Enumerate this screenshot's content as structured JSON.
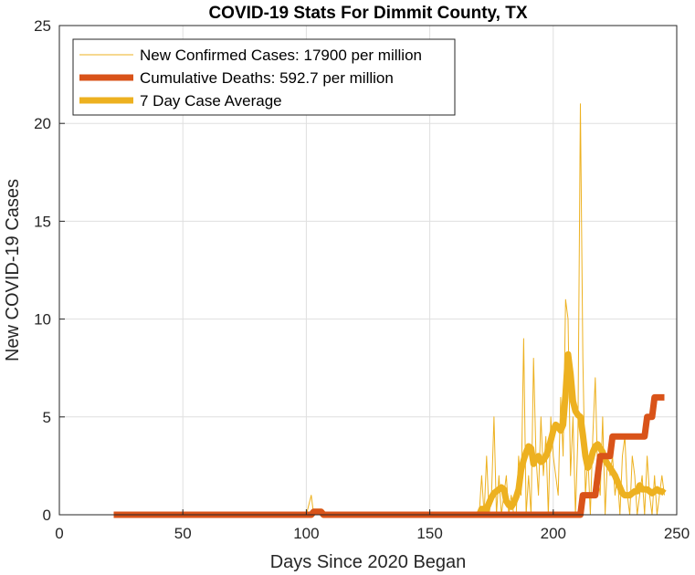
{
  "chart_data": {
    "type": "line",
    "title": "COVID-19 Stats For Dimmit County, TX",
    "xlabel": "Days Since 2020 Began",
    "ylabel": "New COVID-19 Cases",
    "xlim": [
      0,
      250
    ],
    "ylim": [
      0,
      25
    ],
    "xticks": [
      0,
      50,
      100,
      150,
      200,
      250
    ],
    "yticks": [
      0,
      5,
      10,
      15,
      20,
      25
    ],
    "grid": true,
    "legend_position": "top-left",
    "colors": {
      "new_cases": "#EDB120",
      "deaths": "#D95319",
      "average": "#EDB120"
    },
    "series": [
      {
        "name": "New Confirmed Cases: 17900 per million",
        "style": "thin",
        "x": [
          22,
          100,
          102,
          103,
          104,
          105,
          106,
          170,
          171,
          172,
          173,
          174,
          175,
          176,
          177,
          178,
          179,
          180,
          181,
          182,
          183,
          184,
          185,
          186,
          187,
          188,
          189,
          190,
          191,
          192,
          193,
          194,
          195,
          196,
          197,
          198,
          199,
          200,
          201,
          202,
          203,
          204,
          205,
          206,
          207,
          208,
          209,
          210,
          211,
          212,
          213,
          214,
          215,
          216,
          217,
          218,
          219,
          220,
          221,
          222,
          223,
          224,
          225,
          226,
          227,
          228,
          229,
          230,
          231,
          232,
          233,
          234,
          235,
          236,
          237,
          238,
          239,
          240,
          241,
          242,
          243,
          244,
          245
        ],
        "y": [
          0,
          0,
          1,
          0,
          0,
          0,
          0,
          0,
          2,
          0,
          3,
          0,
          1,
          5,
          0,
          2,
          0,
          1,
          2,
          0,
          1,
          0,
          0,
          3,
          1,
          9,
          0,
          2,
          0,
          8,
          3,
          1,
          5,
          2,
          4,
          0,
          5,
          3,
          2,
          1,
          6,
          3,
          11,
          10,
          2,
          5,
          0,
          4,
          21,
          8,
          1,
          3,
          0,
          4,
          7,
          2,
          1,
          5,
          0,
          3,
          2,
          3,
          1,
          2,
          0,
          3,
          4,
          1,
          0,
          3,
          2,
          0,
          1,
          2,
          0,
          3,
          1,
          0,
          2,
          0,
          1,
          2,
          1
        ]
      },
      {
        "name": "Cumulative Deaths: 592.7 per million",
        "style": "thick",
        "x": [
          22,
          102,
          103,
          106,
          107,
          211,
          212,
          213,
          217,
          218,
          219,
          220,
          221,
          222,
          223,
          224,
          225,
          226,
          227,
          228,
          229,
          230,
          231,
          232,
          233,
          234,
          235,
          236,
          237,
          238,
          239,
          240,
          241,
          242,
          243,
          244,
          245
        ],
        "y": [
          0,
          0,
          0.15,
          0.15,
          0,
          0,
          1,
          1,
          1,
          2,
          3,
          3,
          3,
          3,
          3,
          4,
          4,
          4,
          4,
          4,
          4,
          4,
          4,
          4,
          4,
          4,
          4,
          4,
          4,
          5,
          5,
          5,
          6,
          6,
          6,
          6,
          6
        ]
      },
      {
        "name": "7 Day Case Average",
        "style": "thick",
        "x": [
          22,
          102,
          103,
          104,
          105,
          106,
          107,
          170,
          171,
          172,
          173,
          174,
          175,
          176,
          177,
          178,
          179,
          180,
          181,
          182,
          183,
          184,
          185,
          186,
          187,
          188,
          189,
          190,
          191,
          192,
          193,
          194,
          195,
          196,
          197,
          198,
          199,
          200,
          201,
          202,
          203,
          204,
          205,
          206,
          207,
          208,
          209,
          210,
          211,
          212,
          213,
          214,
          215,
          216,
          217,
          218,
          219,
          220,
          221,
          222,
          223,
          224,
          225,
          226,
          227,
          228,
          229,
          230,
          231,
          232,
          233,
          234,
          235,
          236,
          237,
          238,
          239,
          240,
          241,
          242,
          243,
          244,
          245
        ],
        "y": [
          0,
          0,
          0.15,
          0.15,
          0.15,
          0.15,
          0,
          0,
          0.3,
          0.3,
          0.3,
          0.6,
          0.9,
          1.1,
          1.2,
          1.3,
          1.4,
          1.3,
          0.7,
          0.5,
          0.4,
          0.6,
          0.9,
          1.3,
          2.3,
          2.8,
          3.2,
          3.5,
          3.4,
          2.6,
          2.9,
          3.0,
          2.7,
          2.8,
          3.0,
          3.3,
          3.8,
          4.3,
          4.6,
          4.5,
          4.3,
          4.6,
          6.2,
          8.2,
          7.2,
          5.8,
          5.3,
          5.1,
          5.0,
          4.1,
          3.0,
          2.4,
          2.7,
          3.2,
          3.5,
          3.6,
          3.4,
          3.2,
          2.8,
          2.6,
          2.4,
          2.2,
          2.0,
          1.7,
          1.4,
          1.1,
          1.0,
          1.0,
          1.0,
          1.1,
          1.2,
          1.2,
          1.5,
          1.3,
          1.3,
          1.3,
          1.2,
          1.1,
          1.2,
          1.3,
          1.2,
          1.2,
          1.1
        ]
      }
    ]
  }
}
